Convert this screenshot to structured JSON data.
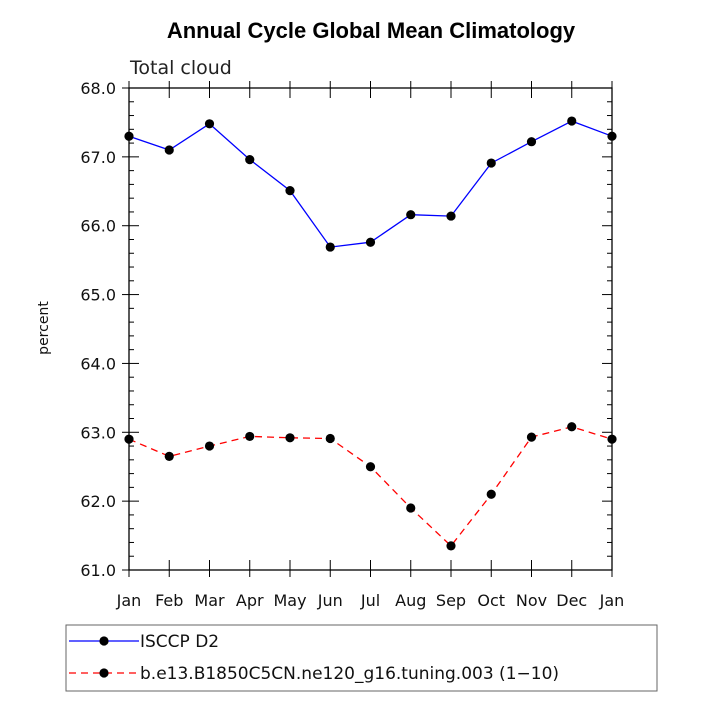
{
  "chart_data": {
    "type": "line",
    "title": "Annual Cycle Global Mean Climatology",
    "subtitle": "Total cloud",
    "xlabel": "",
    "ylabel": "percent",
    "categories": [
      "Jan",
      "Feb",
      "Mar",
      "Apr",
      "May",
      "Jun",
      "Jul",
      "Aug",
      "Sep",
      "Oct",
      "Nov",
      "Dec",
      "Jan"
    ],
    "ylim": [
      61.0,
      68.0
    ],
    "yticks": [
      "61.0",
      "62.0",
      "63.0",
      "64.0",
      "65.0",
      "66.0",
      "67.0",
      "68.0"
    ],
    "grid": false,
    "legend_position": "bottom",
    "series": [
      {
        "name": "ISCCP D2",
        "color": "#0000ff",
        "dash": "solid",
        "marker": "filled-circle",
        "values": [
          67.3,
          67.1,
          67.48,
          66.96,
          66.51,
          65.69,
          65.76,
          66.16,
          66.14,
          66.91,
          67.22,
          67.52,
          67.3
        ]
      },
      {
        "name": "b.e13.B1850C5CN.ne120_g16.tuning.003 (1−10)",
        "color": "#ff0000",
        "dash": "dashed",
        "marker": "filled-circle",
        "values": [
          62.9,
          62.65,
          62.8,
          62.94,
          62.92,
          62.91,
          62.5,
          61.9,
          61.35,
          62.1,
          62.93,
          63.08,
          62.9
        ]
      }
    ]
  }
}
